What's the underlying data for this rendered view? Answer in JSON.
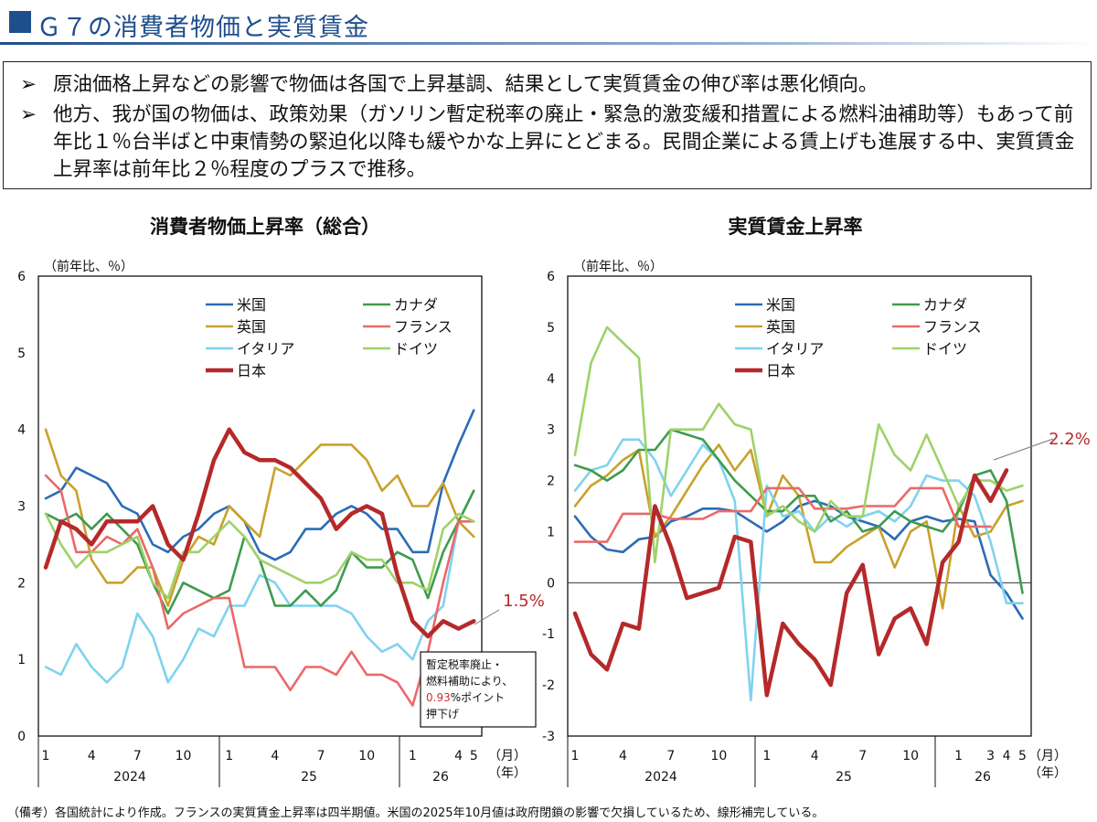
{
  "header": {
    "title": "Ｇ７の消費者物価と実質賃金"
  },
  "bullets": [
    {
      "marker": "➢",
      "text": "原油価格上昇などの影響で物価は各国で上昇基調、結果として実質賃金の伸び率は悪化傾向。"
    },
    {
      "marker": "➢",
      "text": "他方、我が国の物価は、政策効果（ガソリン暫定税率の廃止・緊急的激変緩和措置による燃料油補助等）もあって前年比１％台半ばと中東情勢の緊迫化以降も緩やかな上昇にとどまる。民間企業による賃上げも進展する中、実質賃金上昇率は前年比２％程度のプラスで推移。"
    }
  ],
  "footnote": "（備考）各国統計により作成。フランスの実質賃金上昇率は四半期値。米国の2025年10月値は政府閉鎖の影響で欠損しているため、線形補完している。",
  "chart_data": [
    {
      "type": "line",
      "title": "消費者物価上昇率（総合）",
      "unit_label": "（前年比、％）",
      "ylim": [
        0,
        6
      ],
      "yticks": [
        "6",
        "5",
        "4",
        "3",
        "2",
        "1",
        "0"
      ],
      "month_ticks": [
        "1",
        "4",
        "7",
        "10",
        "1",
        "4",
        "7",
        "10",
        "1",
        "4",
        "5"
      ],
      "month_unit": "（月）",
      "year_labels": [
        "2024",
        "25",
        "26"
      ],
      "year_unit": "（年）",
      "x_months": [
        "2024-01",
        "2024-02",
        "2024-03",
        "2024-04",
        "2024-05",
        "2024-06",
        "2024-07",
        "2024-08",
        "2024-09",
        "2024-10",
        "2024-11",
        "2024-12",
        "2025-01",
        "2025-02",
        "2025-03",
        "2025-04",
        "2025-05",
        "2025-06",
        "2025-07",
        "2025-08",
        "2025-09",
        "2025-10",
        "2025-11",
        "2025-12",
        "2026-01",
        "2026-02",
        "2026-03",
        "2026-04",
        "2026-05"
      ],
      "legend": [
        "米国",
        "英国",
        "イタリア",
        "日本",
        "カナダ",
        "フランス",
        "ドイツ"
      ],
      "series": [
        {
          "name": "米国",
          "color": "#2b6cb5",
          "values": [
            3.1,
            3.2,
            3.5,
            3.4,
            3.3,
            3.0,
            2.9,
            2.5,
            2.4,
            2.6,
            2.7,
            2.9,
            3.0,
            2.8,
            2.4,
            2.3,
            2.4,
            2.7,
            2.7,
            2.9,
            3.0,
            2.9,
            2.7,
            2.7,
            2.4,
            2.4,
            3.3,
            3.8,
            4.25
          ]
        },
        {
          "name": "英国",
          "color": "#c9a12c",
          "values": [
            4.0,
            3.4,
            3.2,
            2.3,
            2.0,
            2.0,
            2.2,
            2.2,
            1.7,
            2.3,
            2.6,
            2.5,
            3.0,
            2.8,
            2.6,
            3.5,
            3.4,
            3.6,
            3.8,
            3.8,
            3.8,
            3.6,
            3.2,
            3.4,
            3.0,
            3.0,
            3.3,
            2.8,
            2.6
          ]
        },
        {
          "name": "イタリア",
          "color": "#7fd3ef",
          "values": [
            0.9,
            0.8,
            1.2,
            0.9,
            0.7,
            0.9,
            1.6,
            1.3,
            0.7,
            1.0,
            1.4,
            1.3,
            1.7,
            1.7,
            2.1,
            2.0,
            1.7,
            1.7,
            1.7,
            1.7,
            1.6,
            1.3,
            1.1,
            1.2,
            1.0,
            1.5,
            1.7,
            2.8,
            3.2
          ]
        },
        {
          "name": "日本",
          "color": "#b5292a",
          "values": [
            2.2,
            2.8,
            2.7,
            2.5,
            2.8,
            2.8,
            2.8,
            3.0,
            2.5,
            2.3,
            2.9,
            3.6,
            4.0,
            3.7,
            3.6,
            3.6,
            3.5,
            3.3,
            3.1,
            2.7,
            2.9,
            3.0,
            2.9,
            2.1,
            1.5,
            1.3,
            1.5,
            1.4,
            1.5
          ]
        },
        {
          "name": "カナダ",
          "color": "#3e9b4f",
          "values": [
            2.9,
            2.8,
            2.9,
            2.7,
            2.9,
            2.7,
            2.5,
            2.0,
            1.6,
            2.0,
            1.9,
            1.8,
            1.9,
            2.6,
            2.3,
            1.7,
            1.7,
            1.9,
            1.7,
            1.9,
            2.4,
            2.2,
            2.2,
            2.4,
            2.3,
            1.8,
            2.4,
            2.8,
            3.2
          ]
        },
        {
          "name": "フランス",
          "color": "#ea6969",
          "values": [
            3.4,
            3.2,
            2.4,
            2.4,
            2.6,
            2.5,
            2.7,
            2.2,
            1.4,
            1.6,
            1.7,
            1.8,
            1.8,
            0.9,
            0.9,
            0.9,
            0.6,
            0.9,
            0.9,
            0.8,
            1.1,
            0.8,
            0.8,
            0.7,
            0.4,
            1.1,
            2.0,
            2.8,
            2.8
          ]
        },
        {
          "name": "ドイツ",
          "color": "#9ed26a",
          "values": [
            2.9,
            2.5,
            2.2,
            2.4,
            2.4,
            2.5,
            2.6,
            2.0,
            1.8,
            2.4,
            2.4,
            2.6,
            2.8,
            2.6,
            2.3,
            2.2,
            2.1,
            2.0,
            2.0,
            2.1,
            2.4,
            2.3,
            2.3,
            2.0,
            2.0,
            1.9,
            2.7,
            2.9,
            2.8
          ]
        }
      ],
      "callout_value": "1.5%",
      "note_box": {
        "line1": "暫定税率廃止・",
        "line2": "燃料補助により、",
        "highlight": "0.93",
        "line3_rest": "%ポイント",
        "line4": "押下げ"
      }
    },
    {
      "type": "line",
      "title": "実質賃金上昇率",
      "unit_label": "（前年比、％）",
      "ylim": [
        -3,
        6
      ],
      "yticks": [
        "6",
        "5",
        "4",
        "3",
        "2",
        "1",
        "0",
        "-1",
        "-2",
        "-3"
      ],
      "month_ticks": [
        "1",
        "4",
        "7",
        "10",
        "1",
        "4",
        "7",
        "10",
        "1",
        "3",
        "4",
        "5"
      ],
      "month_unit": "（月）",
      "year_labels": [
        "2024",
        "25",
        "26"
      ],
      "year_unit": "（年）",
      "x_months": [
        "2024-01",
        "2024-02",
        "2024-03",
        "2024-04",
        "2024-05",
        "2024-06",
        "2024-07",
        "2024-08",
        "2024-09",
        "2024-10",
        "2024-11",
        "2024-12",
        "2025-01",
        "2025-02",
        "2025-03",
        "2025-04",
        "2025-05",
        "2025-06",
        "2025-07",
        "2025-08",
        "2025-09",
        "2025-10",
        "2025-11",
        "2025-12",
        "2026-01",
        "2026-02",
        "2026-03",
        "2026-04",
        "2026-05"
      ],
      "legend": [
        "米国",
        "英国",
        "イタリア",
        "日本",
        "カナダ",
        "フランス",
        "ドイツ"
      ],
      "series": [
        {
          "name": "米国",
          "color": "#2b6cb5",
          "values": [
            1.3,
            0.9,
            0.65,
            0.6,
            0.85,
            0.9,
            1.2,
            1.3,
            1.45,
            1.45,
            1.4,
            1.2,
            1.0,
            1.2,
            1.5,
            1.6,
            1.5,
            1.3,
            1.2,
            1.1,
            0.85,
            1.2,
            1.3,
            1.2,
            1.25,
            1.2,
            0.15,
            -0.2,
            -0.7
          ]
        },
        {
          "name": "英国",
          "color": "#c9a12c",
          "values": [
            1.5,
            1.9,
            2.1,
            2.4,
            2.6,
            0.9,
            1.3,
            1.8,
            2.3,
            2.7,
            2.2,
            2.6,
            1.3,
            2.1,
            1.7,
            0.4,
            0.4,
            0.7,
            0.9,
            1.1,
            0.3,
            1.0,
            1.2,
            -0.5,
            1.5,
            0.9,
            1.0,
            1.5,
            1.6
          ]
        },
        {
          "name": "イタリア",
          "color": "#7fd3ef",
          "values": [
            1.8,
            2.2,
            2.3,
            2.8,
            2.8,
            2.4,
            1.7,
            2.2,
            2.7,
            2.4,
            1.6,
            -2.3,
            1.9,
            1.3,
            1.4,
            1.0,
            1.3,
            1.1,
            1.3,
            1.4,
            1.2,
            1.5,
            2.1,
            2.0,
            2.0,
            1.7,
            0.8,
            -0.4,
            -0.4
          ]
        },
        {
          "name": "日本",
          "color": "#b5292a",
          "values": [
            -0.6,
            -1.4,
            -1.7,
            -0.8,
            -0.9,
            1.5,
            0.7,
            -0.3,
            -0.2,
            -0.1,
            0.9,
            0.8,
            -2.2,
            -0.8,
            -1.2,
            -1.5,
            -2.0,
            -0.2,
            0.35,
            -1.4,
            -0.7,
            -0.5,
            -1.2,
            0.4,
            0.8,
            2.1,
            1.6,
            2.2
          ]
        },
        {
          "name": "カナダ",
          "color": "#3e9b4f",
          "values": [
            2.3,
            2.2,
            2.0,
            2.2,
            2.6,
            2.6,
            3.0,
            2.9,
            2.8,
            2.4,
            2.0,
            1.7,
            1.4,
            1.4,
            1.7,
            1.7,
            1.2,
            1.4,
            1.0,
            1.1,
            1.4,
            1.2,
            1.1,
            1.0,
            1.4,
            2.1,
            2.2,
            1.6,
            -0.2
          ]
        },
        {
          "name": "フランス",
          "color": "#ea6969",
          "values": [
            0.8,
            0.8,
            0.8,
            1.35,
            1.35,
            1.35,
            1.25,
            1.25,
            1.25,
            1.4,
            1.4,
            1.4,
            1.85,
            1.85,
            1.85,
            1.45,
            1.45,
            1.45,
            1.5,
            1.5,
            1.5,
            1.85,
            1.85,
            1.85,
            1.1,
            1.1,
            1.1
          ]
        },
        {
          "name": "ドイツ",
          "color": "#9ed26a",
          "values": [
            2.5,
            4.3,
            5.0,
            4.7,
            4.4,
            0.4,
            3.0,
            3.0,
            3.0,
            3.5,
            3.1,
            3.0,
            1.3,
            1.5,
            1.2,
            1.0,
            1.6,
            1.3,
            1.3,
            3.1,
            2.5,
            2.2,
            2.9,
            2.2,
            1.5,
            2.0,
            2.0,
            1.8,
            1.9
          ]
        }
      ],
      "callout_value": "2.2%"
    }
  ]
}
